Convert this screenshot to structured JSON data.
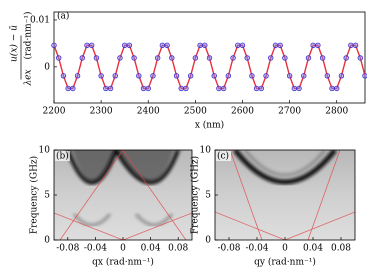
{
  "chart_data": [
    {
      "type": "line",
      "label": "(a)",
      "xlabel": "x (nm)",
      "ylabel_numerator": "u(x) − ū",
      "ylabel_denominator": "λex",
      "ylabel_unit": "(rad·nm⁻¹)",
      "color": "#e8303a",
      "marker_color": "#3a2fd0",
      "xlim": [
        2200,
        2860
      ],
      "xticks": [
        2200,
        2300,
        2400,
        2500,
        2600,
        2700,
        2800
      ],
      "ylim": [
        -0.0077,
        0.0117
      ],
      "yticks": [
        0,
        0.01
      ],
      "x": [
        2200,
        2210,
        2220,
        2230,
        2240,
        2250,
        2260,
        2270,
        2280,
        2290,
        2300,
        2310,
        2320,
        2330,
        2340,
        2350,
        2360,
        2370,
        2380,
        2390,
        2400,
        2410,
        2420,
        2430,
        2440,
        2450,
        2460,
        2470,
        2480,
        2490,
        2500,
        2510,
        2520,
        2530,
        2540,
        2550,
        2560,
        2570,
        2580,
        2590,
        2600,
        2610,
        2620,
        2630,
        2640,
        2650,
        2660,
        2670,
        2680,
        2690,
        2700,
        2710,
        2720,
        2730,
        2740,
        2750,
        2760,
        2770,
        2780,
        2790,
        2800,
        2810,
        2820,
        2830,
        2840,
        2850,
        2860
      ],
      "values": [
        0.0046,
        0.0019,
        -0.0019,
        -0.0046,
        -0.0046,
        -0.0019,
        0.0019,
        0.0046,
        0.0046,
        0.0019,
        -0.0019,
        -0.0046,
        -0.0046,
        -0.0019,
        0.0019,
        0.0046,
        0.0046,
        0.0019,
        -0.0019,
        -0.0046,
        -0.0046,
        -0.0019,
        0.0019,
        0.0046,
        0.0046,
        0.0019,
        -0.0019,
        -0.0046,
        -0.0046,
        -0.0019,
        0.0019,
        0.0046,
        0.0046,
        0.0019,
        -0.0019,
        -0.0046,
        -0.0046,
        -0.0019,
        0.0019,
        0.0046,
        0.0046,
        0.0019,
        -0.0019,
        -0.0046,
        -0.0046,
        -0.0019,
        0.0019,
        0.0046,
        0.0046,
        0.0019,
        -0.0019,
        -0.0046,
        -0.0046,
        -0.0019,
        0.0019,
        0.0046,
        0.0046,
        0.0019,
        -0.0019,
        -0.0046,
        -0.0046,
        -0.0019,
        0.0019,
        0.0046,
        0.0046,
        0.0019,
        -0.0019
      ]
    },
    {
      "type": "heatmap",
      "label": "(b)",
      "xlabel": "qx (rad·nm⁻¹)",
      "ylabel": "Frequency (GHz)",
      "xlim": [
        -0.1,
        0.1
      ],
      "xticks": [
        -0.08,
        -0.04,
        0,
        0.04,
        0.08
      ],
      "ylim": [
        0,
        10
      ],
      "yticks": [
        0,
        5,
        10
      ]
    },
    {
      "type": "heatmap",
      "label": "(c)",
      "xlabel": "qy (rad·nm⁻¹)",
      "ylabel": "Frequency (GHz)",
      "xlim": [
        -0.1,
        0.1
      ],
      "xticks": [
        -0.08,
        -0.04,
        0,
        0.04,
        0.08
      ],
      "ylim": [
        0,
        10
      ],
      "yticks": [
        0,
        5,
        10
      ]
    }
  ]
}
